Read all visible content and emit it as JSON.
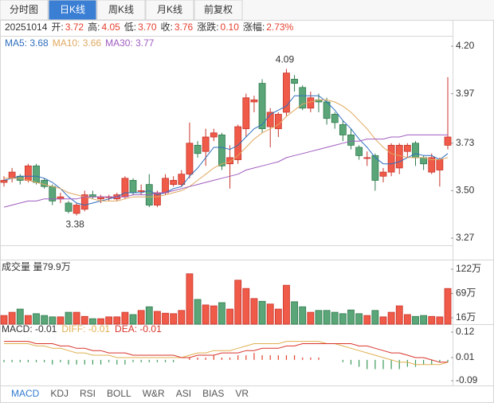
{
  "tabs": [
    "分时图",
    "日K线",
    "周K线",
    "月K线",
    "前复权"
  ],
  "active_tab": 1,
  "indicator_tabs": [
    "MACD",
    "KDJ",
    "RSI",
    "BOLL",
    "W&R",
    "ASI",
    "BIAS",
    "VR"
  ],
  "active_indicator": 0,
  "chart_data": [
    {
      "type": "candlestick",
      "date": "20251014",
      "info": [
        {
          "label": "开:",
          "value": "3.72"
        },
        {
          "label": "高:",
          "value": "4.05"
        },
        {
          "label": "低:",
          "value": "3.70"
        },
        {
          "label": "收:",
          "value": "3.76"
        },
        {
          "label": "涨跌:",
          "value": "0.10"
        },
        {
          "label": "涨幅:",
          "value": "2.73%"
        }
      ],
      "info_color": "#e5402f",
      "up_color": "#f05a48",
      "up_edge": "#c8342a",
      "down_color": "#5aa678",
      "down_edge": "#2f7a4d",
      "open": [
        3.54,
        3.56,
        3.57,
        3.55,
        3.62,
        3.55,
        3.52,
        3.46,
        3.44,
        3.39,
        3.41,
        3.48,
        3.46,
        3.47,
        3.46,
        3.47,
        3.55,
        3.5,
        3.53,
        3.43,
        3.49,
        3.53,
        3.53,
        3.58,
        3.72,
        3.69,
        3.76,
        3.77,
        3.63,
        3.65,
        3.8,
        3.93,
        4.02,
        3.81,
        3.8,
        3.88,
        4.04,
        4.0,
        3.9,
        3.94,
        3.93,
        3.87,
        3.82,
        3.77,
        3.71,
        3.66,
        3.67,
        3.57,
        3.59,
        3.61,
        3.69,
        3.73,
        3.66,
        3.59,
        3.6,
        3.72
      ],
      "high": [
        3.57,
        3.61,
        3.58,
        3.63,
        3.63,
        3.56,
        3.53,
        3.49,
        3.45,
        3.44,
        3.5,
        3.5,
        3.48,
        3.48,
        3.49,
        3.57,
        3.56,
        3.53,
        3.58,
        3.5,
        3.58,
        3.57,
        3.6,
        3.83,
        3.74,
        3.8,
        3.8,
        3.78,
        3.72,
        3.82,
        3.97,
        3.96,
        4.04,
        3.9,
        3.88,
        4.09,
        4.06,
        4.01,
        3.98,
        3.97,
        3.95,
        3.88,
        3.84,
        3.8,
        3.72,
        3.69,
        3.68,
        3.61,
        3.73,
        3.73,
        3.73,
        3.74,
        3.67,
        3.68,
        3.66,
        4.05
      ],
      "low": [
        3.52,
        3.54,
        3.53,
        3.54,
        3.53,
        3.51,
        3.43,
        3.44,
        3.39,
        3.38,
        3.4,
        3.46,
        3.44,
        3.45,
        3.45,
        3.46,
        3.48,
        3.48,
        3.42,
        3.42,
        3.48,
        3.52,
        3.52,
        3.56,
        3.66,
        3.62,
        3.74,
        3.6,
        3.51,
        3.63,
        3.76,
        3.88,
        3.78,
        3.71,
        3.76,
        3.86,
        3.98,
        3.89,
        3.88,
        3.88,
        3.82,
        3.8,
        3.74,
        3.7,
        3.65,
        3.62,
        3.5,
        3.54,
        3.57,
        3.58,
        3.66,
        3.62,
        3.6,
        3.58,
        3.52,
        3.7
      ],
      "close": [
        3.55,
        3.59,
        3.55,
        3.62,
        3.54,
        3.52,
        3.45,
        3.47,
        3.4,
        3.43,
        3.48,
        3.47,
        3.47,
        3.47,
        3.48,
        3.56,
        3.49,
        3.5,
        3.43,
        3.49,
        3.56,
        3.55,
        3.58,
        3.73,
        3.68,
        3.76,
        3.78,
        3.62,
        3.66,
        3.81,
        3.95,
        3.94,
        3.8,
        3.88,
        3.87,
        4.07,
        4.02,
        3.9,
        3.95,
        3.93,
        3.85,
        3.83,
        3.77,
        3.72,
        3.67,
        3.66,
        3.55,
        3.59,
        3.72,
        3.72,
        3.72,
        3.66,
        3.63,
        3.66,
        3.65,
        3.76
      ],
      "series": [
        {
          "name": "MA5: 3.68",
          "color": "#2f6fbe",
          "values": [
            3.55,
            3.56,
            3.57,
            3.57,
            3.57,
            3.56,
            3.54,
            3.51,
            3.47,
            3.44,
            3.43,
            3.44,
            3.45,
            3.46,
            3.47,
            3.49,
            3.49,
            3.49,
            3.5,
            3.48,
            3.49,
            3.51,
            3.52,
            3.57,
            3.61,
            3.66,
            3.71,
            3.71,
            3.7,
            3.72,
            3.76,
            3.8,
            3.82,
            3.87,
            3.89,
            3.91,
            3.96,
            3.96,
            3.96,
            3.96,
            3.93,
            3.89,
            3.84,
            3.8,
            3.75,
            3.71,
            3.66,
            3.63,
            3.63,
            3.64,
            3.66,
            3.68,
            3.67,
            3.67,
            3.65,
            3.68
          ]
        },
        {
          "name": "MA10: 3.66",
          "color": "#e0a860",
          "values": [
            3.56,
            3.56,
            3.56,
            3.55,
            3.54,
            3.53,
            3.52,
            3.51,
            3.49,
            3.48,
            3.47,
            3.46,
            3.45,
            3.45,
            3.45,
            3.46,
            3.47,
            3.47,
            3.47,
            3.47,
            3.48,
            3.49,
            3.5,
            3.52,
            3.55,
            3.58,
            3.61,
            3.63,
            3.64,
            3.67,
            3.71,
            3.75,
            3.78,
            3.8,
            3.82,
            3.86,
            3.89,
            3.92,
            3.93,
            3.94,
            3.94,
            3.93,
            3.91,
            3.88,
            3.84,
            3.8,
            3.75,
            3.71,
            3.68,
            3.67,
            3.66,
            3.66,
            3.66,
            3.65,
            3.65,
            3.66
          ]
        },
        {
          "name": "MA30: 3.77",
          "color": "#a05cc0",
          "values": [
            3.42,
            3.43,
            3.44,
            3.45,
            3.45,
            3.46,
            3.46,
            3.46,
            3.46,
            3.46,
            3.47,
            3.47,
            3.47,
            3.47,
            3.47,
            3.47,
            3.48,
            3.48,
            3.48,
            3.49,
            3.49,
            3.5,
            3.51,
            3.52,
            3.53,
            3.54,
            3.55,
            3.56,
            3.57,
            3.58,
            3.6,
            3.61,
            3.62,
            3.63,
            3.64,
            3.66,
            3.67,
            3.68,
            3.69,
            3.7,
            3.71,
            3.72,
            3.73,
            3.74,
            3.74,
            3.75,
            3.75,
            3.75,
            3.76,
            3.76,
            3.77,
            3.77,
            3.77,
            3.77,
            3.77,
            3.77
          ]
        }
      ],
      "annotations": [
        4.09,
        3.38
      ],
      "ylim": [
        3.27,
        4.2
      ],
      "yticks": [
        {
          "value": 4.2,
          "label": "4.20"
        },
        3.97,
        3.73,
        {
          "value": 3.5,
          "label": "3.50"
        },
        3.27
      ]
    },
    {
      "type": "volume",
      "title": "成交量 量79.9万",
      "values": [
        21,
        28,
        35,
        21,
        25,
        21,
        18,
        18,
        28,
        28,
        19,
        14,
        14,
        18,
        18,
        28,
        23,
        32,
        40,
        30,
        26,
        25,
        32,
        112,
        56,
        44,
        42,
        49,
        35,
        98,
        80,
        58,
        52,
        46,
        35,
        87,
        51,
        40,
        28,
        32,
        32,
        28,
        25,
        33,
        25,
        21,
        32,
        18,
        28,
        42,
        23,
        19,
        21,
        19,
        18,
        79.9
      ],
      "ylim": [
        16,
        122
      ],
      "yticks": [
        {
          "value": 122,
          "label": "122万"
        },
        {
          "value": 69,
          "label": "69万"
        },
        {
          "value": 16,
          "label": "16万"
        }
      ]
    },
    {
      "type": "macd",
      "series": [
        {
          "name": "MACD: -0.01",
          "color": "#333333",
          "up_color": "#e5402f",
          "down_color": "#3a9a5a",
          "values": [
            -0.01,
            -0.01,
            -0.01,
            -0.01,
            -0.01,
            -0.01,
            -0.02,
            -0.01,
            -0.02,
            -0.02,
            -0.02,
            -0.02,
            -0.02,
            -0.01,
            -0.02,
            -0.02,
            -0.01,
            -0.01,
            -0.01,
            -0.01,
            -0.01,
            -0.01,
            0,
            0.01,
            0.01,
            0.01,
            0.02,
            0.01,
            0.01,
            0.02,
            0.02,
            0.03,
            0.02,
            0.02,
            0.02,
            0.02,
            0.02,
            0.01,
            0.01,
            0.01,
            0,
            0,
            -0.01,
            -0.02,
            -0.03,
            -0.04,
            -0.04,
            -0.04,
            -0.04,
            -0.04,
            -0.03,
            -0.03,
            -0.02,
            -0.02,
            -0.01,
            -0.01
          ]
        },
        {
          "name": "DIFF: -0.01",
          "color": "#e0b050",
          "values": [
            0.07,
            0.07,
            0.07,
            0.07,
            0.06,
            0.06,
            0.05,
            0.05,
            0.04,
            0.03,
            0.03,
            0.02,
            0.02,
            0.02,
            0.01,
            0.01,
            0.01,
            0.01,
            0.01,
            0.01,
            0.01,
            0.01,
            0.01,
            0.02,
            0.03,
            0.03,
            0.04,
            0.04,
            0.04,
            0.05,
            0.06,
            0.07,
            0.07,
            0.07,
            0.07,
            0.08,
            0.08,
            0.08,
            0.08,
            0.08,
            0.07,
            0.07,
            0.06,
            0.05,
            0.04,
            0.03,
            0.02,
            0.01,
            0,
            -0.01,
            -0.01,
            -0.02,
            -0.02,
            -0.02,
            -0.02,
            -0.01
          ]
        },
        {
          "name": "DEA: -0.01",
          "color": "#d9342b",
          "values": [
            0.08,
            0.08,
            0.08,
            0.08,
            0.07,
            0.07,
            0.07,
            0.06,
            0.06,
            0.05,
            0.05,
            0.04,
            0.04,
            0.03,
            0.03,
            0.03,
            0.02,
            0.02,
            0.02,
            0.02,
            0.02,
            0.02,
            0.01,
            0.01,
            0.02,
            0.02,
            0.02,
            0.03,
            0.03,
            0.03,
            0.04,
            0.04,
            0.05,
            0.05,
            0.05,
            0.06,
            0.06,
            0.07,
            0.07,
            0.07,
            0.07,
            0.07,
            0.07,
            0.07,
            0.06,
            0.06,
            0.05,
            0.04,
            0.03,
            0.03,
            0.02,
            0.01,
            0.01,
            0,
            -0.01,
            -0.01
          ]
        }
      ],
      "ylim": [
        -0.09,
        0.12
      ],
      "yticks": [
        0.12,
        0.01,
        -0.09
      ]
    }
  ]
}
